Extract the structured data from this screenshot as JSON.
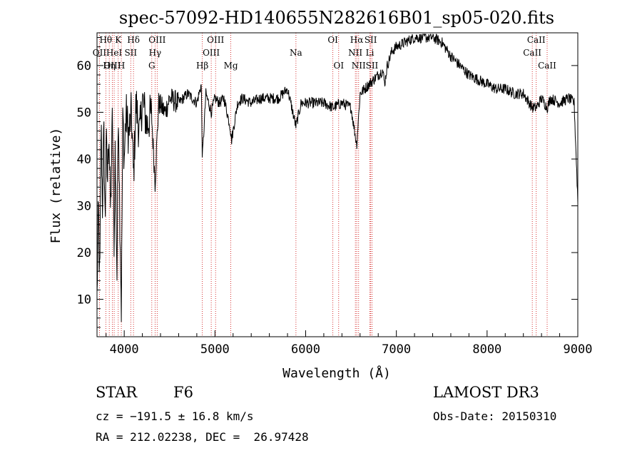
{
  "chart_data": {
    "type": "line",
    "title": "spec-57092-HD140655N282616B01_sp05-020.fits",
    "xlabel": "Wavelength (Å)",
    "ylabel": "Flux (relative)",
    "xlim": [
      3700,
      9000
    ],
    "ylim": [
      2,
      67
    ],
    "xticks": [
      4000,
      5000,
      6000,
      7000,
      8000,
      9000
    ],
    "yticks": [
      10,
      20,
      30,
      40,
      50,
      60
    ],
    "grid": false,
    "line_color": "#000000",
    "marker_color": "#cc0000",
    "spectrum_anchors": [
      [
        3700,
        10
      ],
      [
        3715,
        30
      ],
      [
        3730,
        12
      ],
      [
        3745,
        48
      ],
      [
        3760,
        30
      ],
      [
        3775,
        46
      ],
      [
        3790,
        25
      ],
      [
        3800,
        45
      ],
      [
        3815,
        35
      ],
      [
        3830,
        47
      ],
      [
        3850,
        28
      ],
      [
        3870,
        50
      ],
      [
        3890,
        20
      ],
      [
        3900,
        42
      ],
      [
        3920,
        15
      ],
      [
        3935,
        53
      ],
      [
        3950,
        30
      ],
      [
        3968,
        8
      ],
      [
        3985,
        50
      ],
      [
        4000,
        40
      ],
      [
        4020,
        50
      ],
      [
        4050,
        45
      ],
      [
        4080,
        50
      ],
      [
        4102,
        36
      ],
      [
        4130,
        52
      ],
      [
        4170,
        45
      ],
      [
        4200,
        53
      ],
      [
        4250,
        47
      ],
      [
        4300,
        50
      ],
      [
        4340,
        35
      ],
      [
        4380,
        52
      ],
      [
        4450,
        50
      ],
      [
        4500,
        53
      ],
      [
        4600,
        52
      ],
      [
        4700,
        54
      ],
      [
        4800,
        52
      ],
      [
        4850,
        56
      ],
      [
        4861,
        40
      ],
      [
        4900,
        54
      ],
      [
        4960,
        50
      ],
      [
        5000,
        53
      ],
      [
        5050,
        52
      ],
      [
        5100,
        53
      ],
      [
        5167,
        47
      ],
      [
        5183,
        44
      ],
      [
        5250,
        52
      ],
      [
        5300,
        53
      ],
      [
        5400,
        52
      ],
      [
        5500,
        53
      ],
      [
        5600,
        53
      ],
      [
        5700,
        53
      ],
      [
        5800,
        55
      ],
      [
        5893,
        47
      ],
      [
        5950,
        52
      ],
      [
        6000,
        52
      ],
      [
        6100,
        52
      ],
      [
        6200,
        52
      ],
      [
        6300,
        51
      ],
      [
        6400,
        52
      ],
      [
        6500,
        51
      ],
      [
        6563,
        43
      ],
      [
        6600,
        54
      ],
      [
        6700,
        56
      ],
      [
        6800,
        58
      ],
      [
        6850,
        59
      ],
      [
        6870,
        56
      ],
      [
        6900,
        60
      ],
      [
        6950,
        63
      ],
      [
        7000,
        64
      ],
      [
        7100,
        65
      ],
      [
        7200,
        66
      ],
      [
        7300,
        66
      ],
      [
        7400,
        66
      ],
      [
        7500,
        65
      ],
      [
        7600,
        62
      ],
      [
        7700,
        60
      ],
      [
        7800,
        58
      ],
      [
        7900,
        57
      ],
      [
        8000,
        56
      ],
      [
        8100,
        55
      ],
      [
        8200,
        55
      ],
      [
        8300,
        54
      ],
      [
        8400,
        54
      ],
      [
        8498,
        51
      ],
      [
        8542,
        51
      ],
      [
        8600,
        53
      ],
      [
        8662,
        51
      ],
      [
        8700,
        53
      ],
      [
        8800,
        52
      ],
      [
        8900,
        53
      ],
      [
        8960,
        52
      ],
      [
        9000,
        31
      ]
    ],
    "lines": [
      {
        "label": "Hθ",
        "wave": 3797,
        "row": 0
      },
      {
        "label": "OII",
        "wave": 3727,
        "row": 1
      },
      {
        "label": "OIII",
        "wave": 3869,
        "row": 2
      },
      {
        "label": "HeI",
        "wave": 3889,
        "row": 1
      },
      {
        "label": "Hη",
        "wave": 3835,
        "row": 2
      },
      {
        "label": "K",
        "wave": 3934,
        "row": 0
      },
      {
        "label": "SII",
        "wave": 4072,
        "row": 1
      },
      {
        "label": "H",
        "wave": 3968,
        "row": 2
      },
      {
        "label": "Hδ",
        "wave": 4102,
        "row": 0
      },
      {
        "label": "OIII",
        "wave": 4363,
        "row": 0
      },
      {
        "label": "Hγ",
        "wave": 4340,
        "row": 1
      },
      {
        "label": "G",
        "wave": 4304,
        "row": 2
      },
      {
        "label": "Hβ",
        "wave": 4861,
        "row": 2
      },
      {
        "label": "OIII",
        "wave": 5007,
        "row": 0
      },
      {
        "label": "OIII",
        "wave": 4959,
        "row": 1
      },
      {
        "label": "Mg",
        "wave": 5175,
        "row": 2
      },
      {
        "label": "Na",
        "wave": 5893,
        "row": 1
      },
      {
        "label": "OI",
        "wave": 6300,
        "row": 0
      },
      {
        "label": "OI",
        "wave": 6364,
        "row": 2
      },
      {
        "label": "Hα",
        "wave": 6563,
        "row": 0
      },
      {
        "label": "SII",
        "wave": 6717,
        "row": 0
      },
      {
        "label": "NII",
        "wave": 6548,
        "row": 1
      },
      {
        "label": "Li",
        "wave": 6708,
        "row": 1
      },
      {
        "label": "NII",
        "wave": 6584,
        "row": 2
      },
      {
        "label": "SII",
        "wave": 6731,
        "row": 2
      },
      {
        "label": "CaII",
        "wave": 8542,
        "row": 0
      },
      {
        "label": "CaII",
        "wave": 8498,
        "row": 1
      },
      {
        "label": "CaII",
        "wave": 8662,
        "row": 2
      }
    ]
  },
  "info": {
    "object_class": "STAR",
    "subclass": "F6",
    "survey": "LAMOST DR3",
    "cz": "cz = −191.5 ± 16.8 km/s",
    "obs_date": "Obs-Date: 20150310",
    "coords": "RA = 212.02238, DEC =  26.97428"
  }
}
